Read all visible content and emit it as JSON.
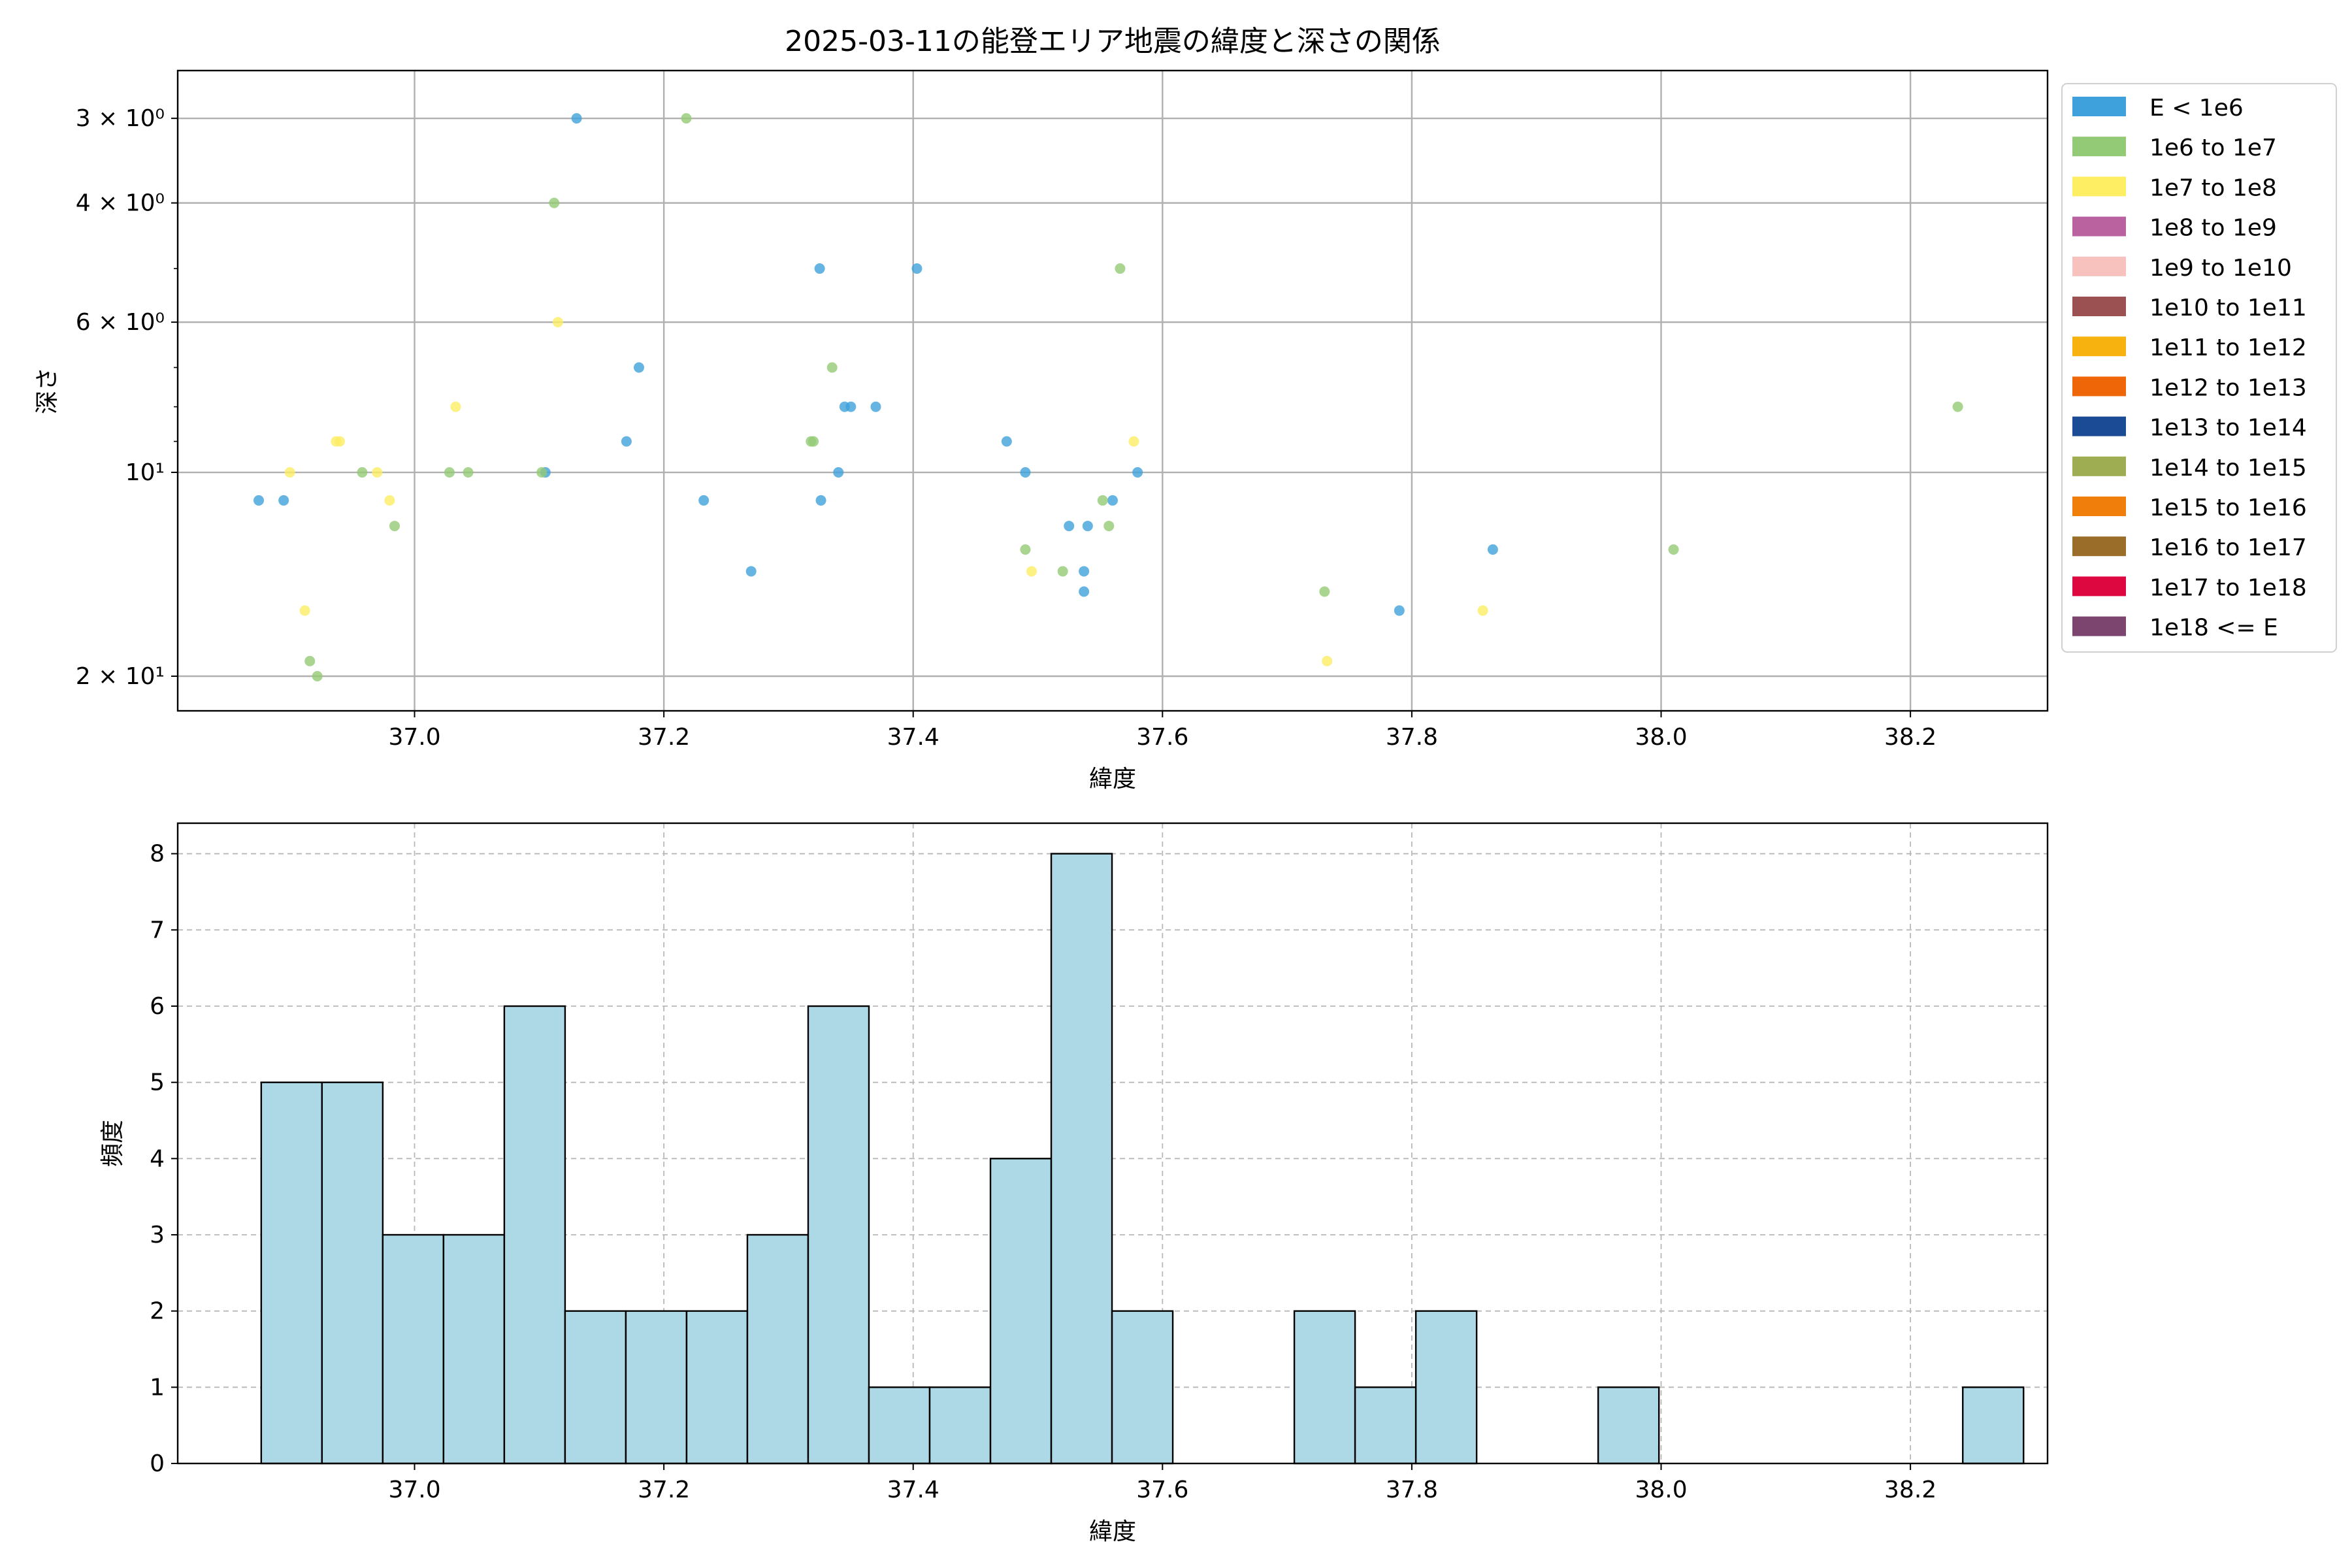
{
  "chart_data": [
    {
      "type": "scatter",
      "title": "2025-03-11の能登エリア地震の緯度と深さの関係",
      "xlabel": "緯度",
      "ylabel": "深さ",
      "xlim": [
        36.81,
        38.31
      ],
      "ylim": [
        22.5,
        2.55
      ],
      "yscale": "log",
      "y_inverted": true,
      "xticks": [
        {
          "value": 37.0,
          "label": "37.0"
        },
        {
          "value": 37.2,
          "label": "37.2"
        },
        {
          "value": 37.4,
          "label": "37.4"
        },
        {
          "value": 37.6,
          "label": "37.6"
        },
        {
          "value": 37.8,
          "label": "37.8"
        },
        {
          "value": 38.0,
          "label": "38.0"
        },
        {
          "value": 38.2,
          "label": "38.2"
        }
      ],
      "yticks": [
        {
          "value": 3,
          "label": "3 × 10⁰"
        },
        {
          "value": 4,
          "label": "4 × 10⁰"
        },
        {
          "value": 6,
          "label": "6 × 10⁰"
        },
        {
          "value": 10,
          "label": "10¹"
        },
        {
          "value": 20,
          "label": "2 × 10¹"
        }
      ],
      "y_minor_ticks": [
        5,
        7,
        8,
        9
      ],
      "grid": true,
      "legend_position": "outside-right",
      "legend": [
        {
          "label": "E < 1e6",
          "color": "#3fa1db"
        },
        {
          "label": "1e6 to 1e7",
          "color": "#93ca75"
        },
        {
          "label": "1e7 to 1e8",
          "color": "#fdee64"
        },
        {
          "label": "1e8 to 1e9",
          "color": "#b9629f"
        },
        {
          "label": "1e9 to 1e10",
          "color": "#f7c2bd"
        },
        {
          "label": "1e10 to 1e11",
          "color": "#9b5152"
        },
        {
          "label": "1e11 to 1e12",
          "color": "#f8b20f"
        },
        {
          "label": "1e12 to 1e13",
          "color": "#ee6608"
        },
        {
          "label": "1e13 to 1e14",
          "color": "#1c4b95"
        },
        {
          "label": "1e14 to 1e15",
          "color": "#9ead51"
        },
        {
          "label": "1e15 to 1e16",
          "color": "#f07e0b"
        },
        {
          "label": "1e16 to 1e17",
          "color": "#9a6d28"
        },
        {
          "label": "1e17 to 1e18",
          "color": "#de0840"
        },
        {
          "label": "1e18 <= E",
          "color": "#7c456f"
        }
      ],
      "series": [
        {
          "name": "E < 1e6",
          "color": "#3fa1db",
          "points": [
            [
              37.13,
              3.0
            ],
            [
              37.325,
              5.0
            ],
            [
              37.403,
              5.0
            ],
            [
              37.18,
              7.0
            ],
            [
              37.345,
              8.0
            ],
            [
              37.35,
              8.0
            ],
            [
              37.37,
              8.0
            ],
            [
              37.17,
              9.0
            ],
            [
              37.475,
              9.0
            ],
            [
              37.105,
              10.0
            ],
            [
              37.34,
              10.0
            ],
            [
              37.49,
              10.0
            ],
            [
              37.58,
              10.0
            ],
            [
              36.875,
              11.0
            ],
            [
              36.895,
              11.0
            ],
            [
              37.232,
              11.0
            ],
            [
              37.326,
              11.0
            ],
            [
              37.56,
              11.0
            ],
            [
              37.525,
              12.0
            ],
            [
              37.54,
              12.0
            ],
            [
              37.865,
              13.0
            ],
            [
              37.27,
              14.0
            ],
            [
              37.537,
              14.0
            ],
            [
              37.537,
              15.0
            ],
            [
              37.79,
              16.0
            ]
          ]
        },
        {
          "name": "1e6 to 1e7",
          "color": "#93ca75",
          "points": [
            [
              37.218,
              3.0
            ],
            [
              37.112,
              4.0
            ],
            [
              37.566,
              5.0
            ],
            [
              37.335,
              7.0
            ],
            [
              38.238,
              8.0
            ],
            [
              37.318,
              9.0
            ],
            [
              37.32,
              9.0
            ],
            [
              36.958,
              10.0
            ],
            [
              37.028,
              10.0
            ],
            [
              37.043,
              10.0
            ],
            [
              37.102,
              10.0
            ],
            [
              37.552,
              11.0
            ],
            [
              36.984,
              12.0
            ],
            [
              37.557,
              12.0
            ],
            [
              37.49,
              13.0
            ],
            [
              38.01,
              13.0
            ],
            [
              37.52,
              14.0
            ],
            [
              37.73,
              15.0
            ],
            [
              36.916,
              19.0
            ],
            [
              36.922,
              20.0
            ]
          ]
        },
        {
          "name": "1e7 to 1e8",
          "color": "#fdee64",
          "points": [
            [
              37.115,
              6.0
            ],
            [
              37.033,
              8.0
            ],
            [
              36.937,
              9.0
            ],
            [
              36.94,
              9.0
            ],
            [
              37.577,
              9.0
            ],
            [
              36.9,
              10.0
            ],
            [
              36.97,
              10.0
            ],
            [
              36.98,
              11.0
            ],
            [
              37.495,
              14.0
            ],
            [
              36.912,
              16.0
            ],
            [
              37.857,
              16.0
            ],
            [
              37.732,
              19.0
            ]
          ]
        }
      ]
    },
    {
      "type": "histogram",
      "xlabel": "緯度",
      "ylabel": "頻度",
      "xlim": [
        36.81,
        38.31
      ],
      "ylim": [
        0,
        8.4
      ],
      "xticks": [
        {
          "value": 37.0,
          "label": "37.0"
        },
        {
          "value": 37.2,
          "label": "37.2"
        },
        {
          "value": 37.4,
          "label": "37.4"
        },
        {
          "value": 37.6,
          "label": "37.6"
        },
        {
          "value": 37.8,
          "label": "37.8"
        },
        {
          "value": 38.0,
          "label": "38.0"
        },
        {
          "value": 38.2,
          "label": "38.2"
        }
      ],
      "yticks": [
        0,
        1,
        2,
        3,
        4,
        5,
        6,
        7,
        8
      ],
      "grid": "dashed",
      "bar_color": "#add8e6",
      "bin_start": 36.877,
      "bin_width": 0.04875,
      "counts": [
        5,
        5,
        3,
        3,
        6,
        2,
        2,
        2,
        3,
        6,
        1,
        1,
        4,
        8,
        2,
        0,
        0,
        2,
        1,
        2,
        0,
        0,
        1,
        0,
        0,
        0,
        0,
        0,
        1
      ]
    }
  ]
}
